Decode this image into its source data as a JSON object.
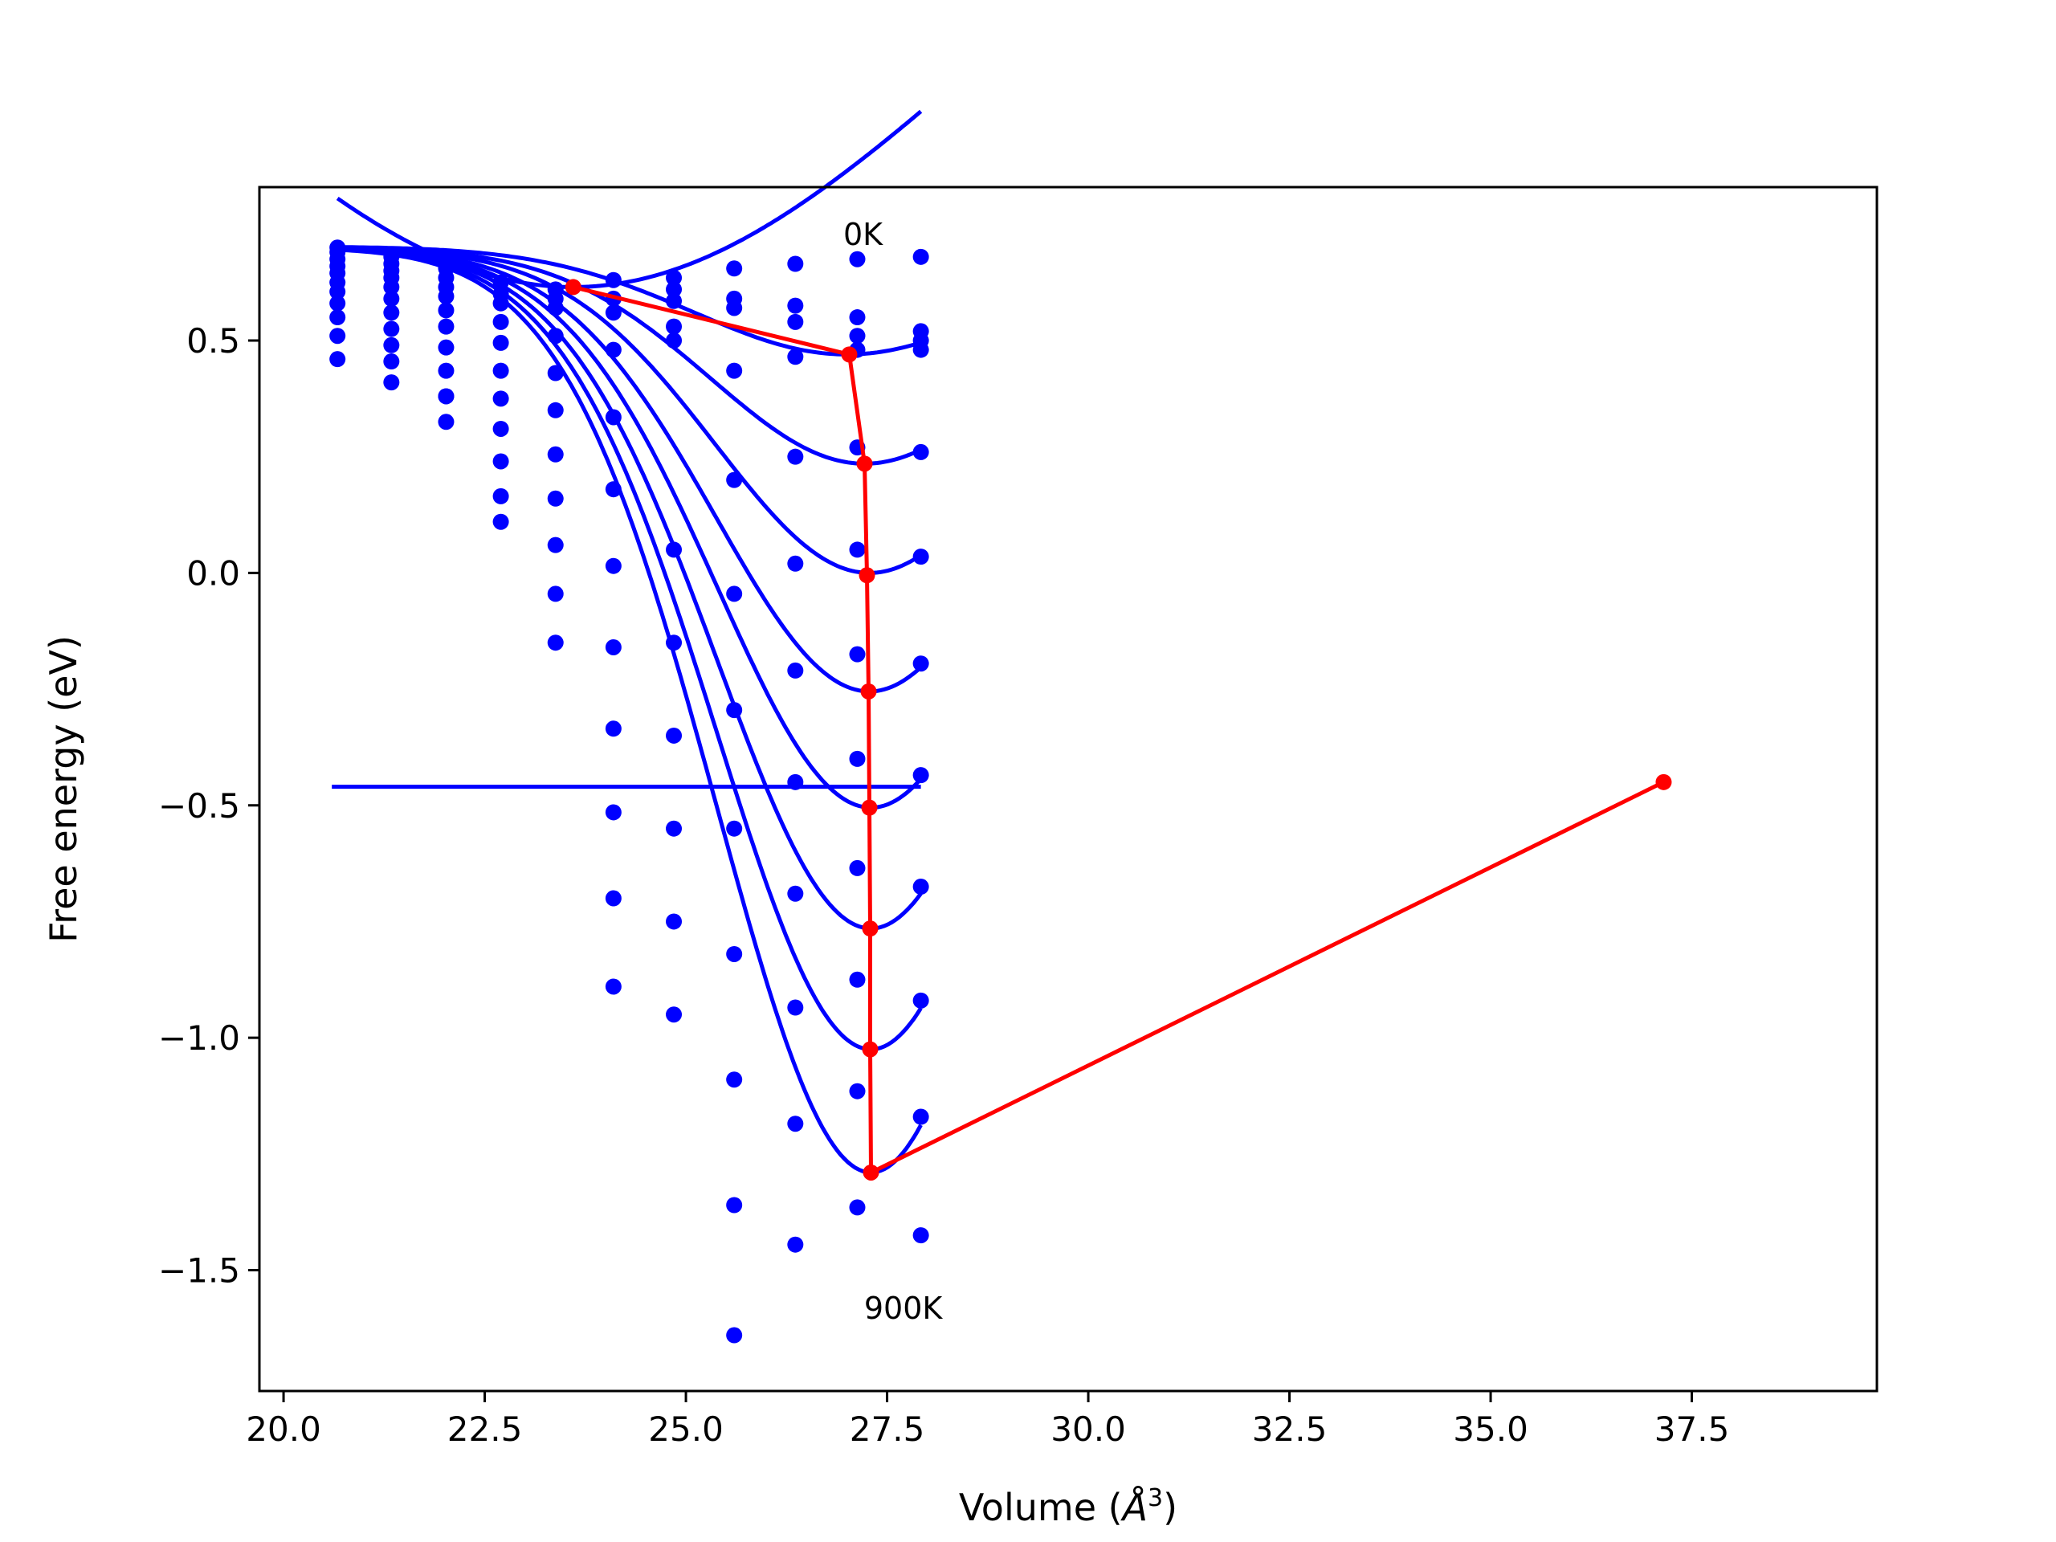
{
  "chart_data": {
    "type": "line",
    "xlabel_text": "Volume (",
    "xlabel_unit": "Å",
    "xlabel_exp": "3",
    "xlabel_close": ")",
    "ylabel": "Free energy (eV)",
    "xlim": [
      19.7,
      39.8
    ],
    "ylim": [
      -1.76,
      0.83
    ],
    "xticks": [
      20.0,
      22.5,
      25.0,
      27.5,
      30.0,
      32.5,
      35.0,
      37.5
    ],
    "xtick_labels": [
      "20.0",
      "22.5",
      "25.0",
      "27.5",
      "30.0",
      "32.5",
      "35.0",
      "37.5"
    ],
    "yticks": [
      0.5,
      0.0,
      -0.5,
      -1.0,
      -1.5
    ],
    "ytick_labels": [
      "0.5",
      "0.0",
      "−0.5",
      "−1.0",
      "−1.5"
    ],
    "annotations": [
      {
        "text": "0K",
        "x": 27.2,
        "y": 0.73
      },
      {
        "text": "900K",
        "x": 27.7,
        "y": -1.58
      }
    ],
    "colors": {
      "points": "#0000ff",
      "fit": "#0000ff",
      "equilibrium": "#ff0000"
    },
    "point_x": [
      20.67,
      21.34,
      22.02,
      22.7,
      23.38,
      24.1,
      24.85,
      25.6,
      26.36,
      27.13,
      27.92
    ],
    "point_series": [
      {
        "y": [
          0.7,
          0.68,
          0.655,
          0.625,
          0.61,
          0.63,
          0.635,
          0.655,
          0.665,
          0.675,
          0.68
        ]
      },
      {
        "y": [
          0.69,
          0.665,
          0.635,
          0.6,
          0.59,
          0.59,
          0.61,
          0.59,
          0.575,
          0.55,
          0.52
        ]
      },
      {
        "y": [
          0.675,
          0.65,
          0.615,
          0.58,
          0.57,
          0.56,
          0.585,
          0.57,
          0.54,
          0.51,
          0.5
        ]
      },
      {
        "y": [
          0.66,
          0.635,
          0.595,
          0.54,
          0.51,
          0.48,
          0.53,
          0.435,
          0.465,
          0.48,
          0.48
        ]
      },
      {
        "y": [
          0.645,
          0.615,
          0.565,
          0.495,
          0.43,
          0.335,
          0.5,
          0.2,
          0.25,
          0.27,
          0.26
        ]
      },
      {
        "y": [
          0.625,
          0.59,
          0.53,
          0.435,
          0.35,
          0.18,
          0.05,
          -0.045,
          0.02,
          0.05,
          0.035
        ]
      },
      {
        "y": [
          0.605,
          0.56,
          0.485,
          0.375,
          0.255,
          0.015,
          -0.15,
          -0.295,
          -0.21,
          -0.175,
          -0.195
        ]
      },
      {
        "y": [
          0.58,
          0.525,
          0.435,
          0.31,
          0.16,
          -0.16,
          -0.35,
          -0.55,
          -0.45,
          -0.4,
          -0.435
        ]
      },
      {
        "y": [
          0.55,
          0.49,
          0.38,
          0.24,
          0.06,
          -0.335,
          -0.55,
          -0.82,
          -0.69,
          -0.635,
          -0.675
        ]
      },
      {
        "y": [
          0.51,
          0.455,
          0.325,
          0.165,
          -0.045,
          -0.515,
          -0.75,
          -1.09,
          -0.935,
          -0.875,
          -0.92
        ]
      },
      {
        "y": [
          0.46,
          0.41,
          0.38,
          0.11,
          -0.15,
          -0.7,
          -0.95,
          -1.36,
          -1.185,
          -1.115,
          -1.17
        ]
      },
      {
        "y": [
          null,
          null,
          null,
          null,
          null,
          -0.89,
          null,
          -1.64,
          -1.445,
          -1.365,
          -1.425
        ]
      }
    ],
    "fit_curves": [
      {
        "e0": 0.615,
        "v0": 23.6,
        "amp": 1.25,
        "w": 7.2
      },
      {
        "e0": 0.47,
        "v0": 27.0,
        "amp": 0.232,
        "w": 2.7
      },
      {
        "e0": 0.235,
        "v0": 27.22,
        "amp": 0.465,
        "w": 2.7
      },
      {
        "e0": 0.0,
        "v0": 27.28,
        "amp": 0.7,
        "w": 2.7
      },
      {
        "e0": -0.255,
        "v0": 27.28,
        "amp": 0.955,
        "w": 2.7
      },
      {
        "e0": -0.505,
        "v0": 27.3,
        "amp": 1.205,
        "w": 2.7
      },
      {
        "e0": -0.765,
        "v0": 27.3,
        "amp": 1.465,
        "w": 2.7
      },
      {
        "e0": -1.025,
        "v0": 27.3,
        "amp": 1.725,
        "w": 2.7
      },
      {
        "e0": -1.29,
        "v0": 27.3,
        "amp": 1.99,
        "w": 2.7
      }
    ],
    "fit_range": [
      20.67,
      27.92
    ],
    "flat_line": {
      "y": -0.46,
      "x": [
        20.6,
        27.92
      ]
    },
    "equilibrium": {
      "x": [
        23.6,
        27.03,
        27.22,
        27.25,
        27.27,
        27.28,
        27.29,
        27.29,
        27.3,
        37.15
      ],
      "y": [
        0.615,
        0.47,
        0.235,
        -0.005,
        -0.255,
        -0.505,
        -0.765,
        -1.025,
        -1.29,
        -0.45
      ]
    }
  }
}
